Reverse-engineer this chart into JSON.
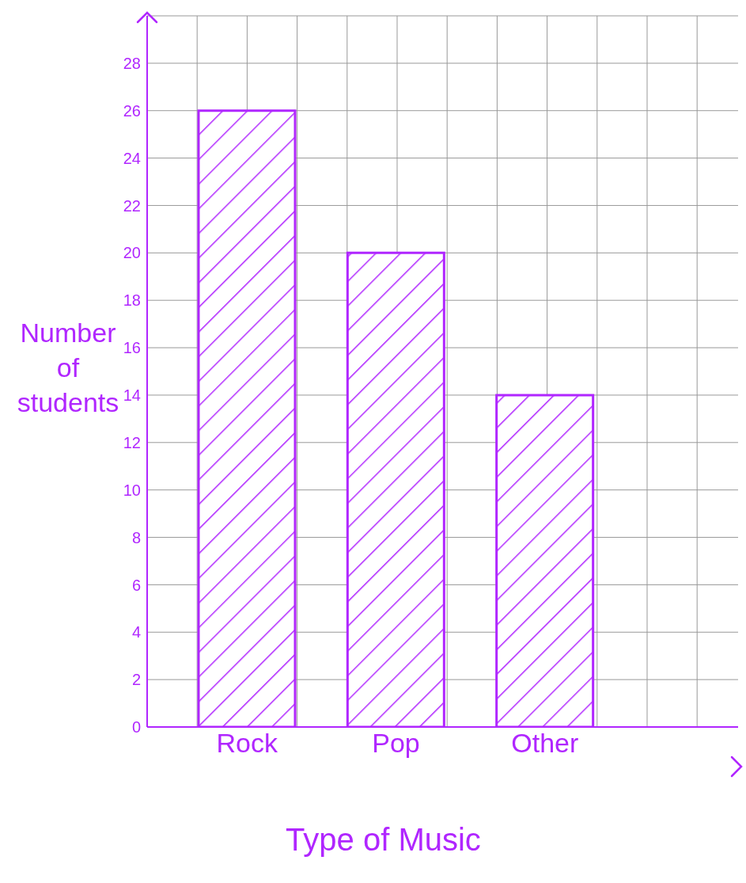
{
  "chart_data": {
    "type": "bar",
    "xlabel": "Type of Music",
    "ylabel": "Number of students",
    "categories": [
      "Rock",
      "Pop",
      "Other"
    ],
    "values": [
      26,
      20,
      14
    ],
    "color": "#b026ff",
    "ylim": [
      0,
      30
    ],
    "yticks": [
      0,
      2,
      4,
      6,
      8,
      10,
      12,
      14,
      16,
      18,
      20,
      22,
      24,
      26,
      28
    ],
    "grid": true
  }
}
